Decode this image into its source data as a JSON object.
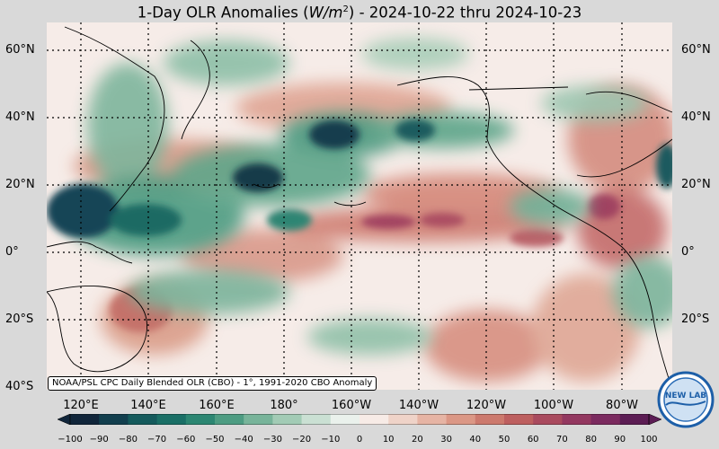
{
  "title": {
    "prefix": "1-Day OLR Anomalies (",
    "unit_base": "W/m",
    "unit_exp": "2",
    "suffix": ") - 2024-10-22 thru 2024-10-23"
  },
  "lat_labels": [
    "60°N",
    "40°N",
    "20°N",
    "0°",
    "20°S",
    "40°S"
  ],
  "lon_labels": [
    "120°E",
    "140°E",
    "160°E",
    "180°",
    "160°W",
    "140°W",
    "120°W",
    "100°W",
    "80°W"
  ],
  "credit": "NOAA/PSL CPC Daily Blended OLR (CBO) - 1°, 1991-2020 CBO Anomaly",
  "colorbar": {
    "ticks": [
      "−100",
      "−90",
      "−80",
      "−70",
      "−60",
      "−50",
      "−40",
      "−30",
      "−20",
      "−10",
      "0",
      "10",
      "20",
      "30",
      "40",
      "50",
      "60",
      "70",
      "80",
      "90",
      "100"
    ],
    "colors": [
      "#10253a",
      "#123f4e",
      "#145a5c",
      "#1a6f66",
      "#2c8672",
      "#4d9c82",
      "#78b49a",
      "#a2cbb5",
      "#cae0d3",
      "#eaf1ec",
      "#f7ebe6",
      "#efd3c8",
      "#e6b4a4",
      "#db9785",
      "#cc796d",
      "#bd5f5f",
      "#a94a5e",
      "#933860",
      "#7b2a5f",
      "#5c1d54"
    ]
  },
  "colors": {
    "background": "#d9d9d9",
    "neutral": "#f6ece8"
  },
  "logo": {
    "text": "NEW LAB"
  }
}
